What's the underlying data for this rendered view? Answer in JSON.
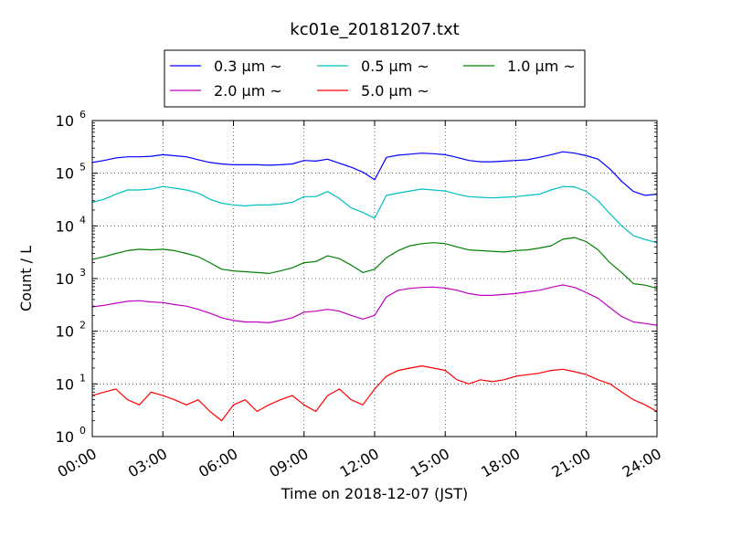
{
  "chart_data": {
    "type": "line",
    "title": "kc01e_20181207.txt",
    "xlabel": "Time on 2018-12-07 (JST)",
    "ylabel": "Count / L",
    "y_scale": "log",
    "xlim": [
      0,
      24
    ],
    "ylim": [
      1,
      1000000
    ],
    "grid": true,
    "legend_position": "top-center",
    "x_tick_labels": [
      "00:00",
      "03:00",
      "06:00",
      "09:00",
      "12:00",
      "15:00",
      "18:00",
      "21:00",
      "24:00"
    ],
    "y_tick_labels": [
      {
        "base": "10",
        "exp": "0"
      },
      {
        "base": "10",
        "exp": "1"
      },
      {
        "base": "10",
        "exp": "2"
      },
      {
        "base": "10",
        "exp": "3"
      },
      {
        "base": "10",
        "exp": "4"
      },
      {
        "base": "10",
        "exp": "5"
      },
      {
        "base": "10",
        "exp": "6"
      }
    ],
    "x": [
      0,
      0.5,
      1,
      1.5,
      2,
      2.5,
      3,
      3.5,
      4,
      4.5,
      5,
      5.5,
      6,
      6.5,
      7,
      7.5,
      8,
      8.5,
      9,
      9.5,
      10,
      10.5,
      11,
      11.5,
      12,
      12.5,
      13,
      13.5,
      14,
      14.5,
      15,
      15.5,
      16,
      16.5,
      17,
      17.5,
      18,
      18.5,
      19,
      19.5,
      20,
      20.5,
      21,
      21.5,
      22,
      22.5,
      23,
      23.5,
      24
    ],
    "series": [
      {
        "name": "0.3 μm ~",
        "color": "#0000ff",
        "values": [
          160000,
          175000,
          195000,
          205000,
          205000,
          210000,
          225000,
          215000,
          205000,
          180000,
          160000,
          150000,
          145000,
          145000,
          145000,
          142000,
          145000,
          150000,
          175000,
          170000,
          185000,
          155000,
          130000,
          105000,
          75000,
          200000,
          220000,
          230000,
          240000,
          235000,
          225000,
          200000,
          175000,
          165000,
          165000,
          170000,
          175000,
          180000,
          200000,
          225000,
          255000,
          240000,
          215000,
          185000,
          120000,
          70000,
          45000,
          38000,
          40000
        ]
      },
      {
        "name": "0.5 μm ~",
        "color": "#00bfbf",
        "values": [
          28000,
          32000,
          40000,
          48000,
          48000,
          50000,
          56000,
          52000,
          48000,
          42000,
          32000,
          27000,
          25000,
          24000,
          25000,
          25000,
          26000,
          28000,
          36000,
          36000,
          45000,
          33000,
          22000,
          18000,
          14000,
          38000,
          42000,
          46000,
          50000,
          48000,
          46000,
          40000,
          36000,
          35000,
          34000,
          35000,
          36000,
          38000,
          40000,
          48000,
          56000,
          55000,
          45000,
          30000,
          17000,
          10000,
          6500,
          5500,
          4800
        ]
      },
      {
        "name": "1.0 μm ~",
        "color": "#008000",
        "values": [
          2300,
          2600,
          3000,
          3400,
          3600,
          3500,
          3600,
          3400,
          3000,
          2600,
          2000,
          1500,
          1400,
          1350,
          1300,
          1250,
          1400,
          1600,
          2000,
          2100,
          2700,
          2400,
          1800,
          1300,
          1500,
          2500,
          3400,
          4200,
          4600,
          4800,
          4600,
          4000,
          3500,
          3400,
          3300,
          3200,
          3400,
          3500,
          3800,
          4200,
          5600,
          6000,
          5000,
          3500,
          2000,
          1300,
          800,
          750,
          650
        ]
      },
      {
        "name": "2.0 μm ~",
        "color": "#bf00bf",
        "values": [
          290,
          310,
          340,
          370,
          380,
          360,
          350,
          320,
          300,
          260,
          220,
          180,
          160,
          150,
          150,
          145,
          160,
          180,
          230,
          240,
          260,
          240,
          200,
          170,
          200,
          450,
          600,
          650,
          680,
          690,
          660,
          600,
          520,
          480,
          480,
          500,
          520,
          560,
          600,
          680,
          760,
          680,
          540,
          420,
          280,
          190,
          150,
          140,
          130
        ]
      },
      {
        "name": "5.0 μm ~",
        "color": "#ff0000",
        "values": [
          6,
          7,
          8,
          5,
          4,
          7,
          6,
          5,
          4,
          5,
          3,
          2,
          4,
          5,
          3,
          4,
          5,
          6,
          4,
          3,
          6,
          8,
          5,
          4,
          8,
          14,
          18,
          20,
          22,
          20,
          18,
          12,
          10,
          12,
          11,
          12,
          14,
          15,
          16,
          18,
          19,
          17,
          15,
          12,
          10,
          7,
          5,
          4,
          3
        ]
      }
    ]
  }
}
